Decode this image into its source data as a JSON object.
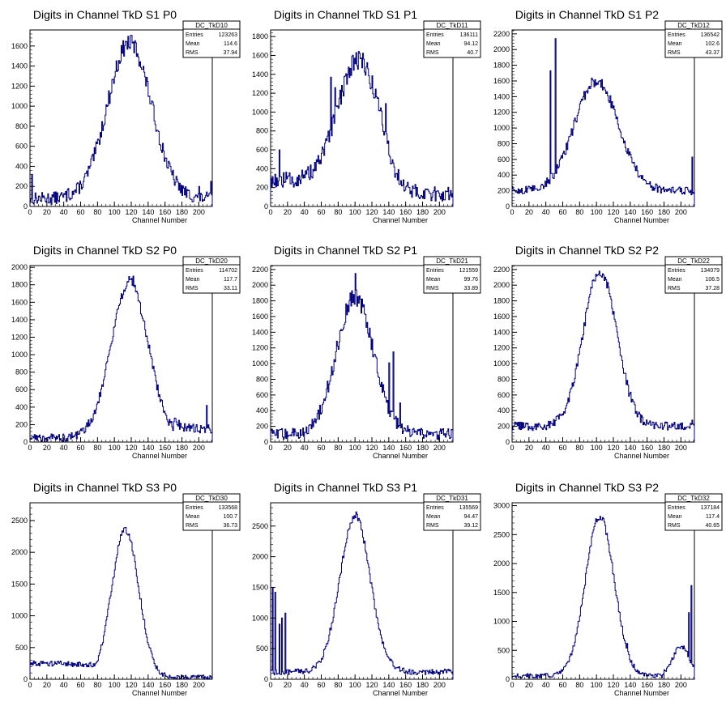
{
  "colors": {
    "line": "#000080",
    "axis": "#000000",
    "background": "#ffffff"
  },
  "stats_labels": {
    "entries": "Entries",
    "mean": "Mean",
    "rms": "RMS"
  },
  "chart_data": [
    {
      "type": "line",
      "title": "Digits in Channel TkD S1 P0",
      "xlabel": "Channel Number",
      "ylabel": "",
      "xlim": [
        0,
        216
      ],
      "ylim": [
        0,
        1760
      ],
      "yticks": [
        0,
        200,
        400,
        600,
        800,
        1000,
        1200,
        1400,
        1600
      ],
      "xticks": [
        0,
        20,
        40,
        60,
        80,
        100,
        120,
        140,
        160,
        180,
        200
      ],
      "stats": {
        "name": "DC_TkD10",
        "entries": "123263",
        "mean": "114.6",
        "rms": "37.94"
      },
      "shape": {
        "kind": "peak",
        "center": 118,
        "sigma": 26,
        "amp": 1550,
        "base": 80,
        "noise": 90
      },
      "spikes": [
        [
          2,
          320
        ],
        [
          45,
          180
        ],
        [
          200,
          200
        ],
        [
          214,
          250
        ]
      ]
    },
    {
      "type": "line",
      "title": "Digits in Channel TkD S1 P1",
      "xlabel": "Channel Number",
      "ylabel": "",
      "xlim": [
        0,
        216
      ],
      "ylim": [
        0,
        1870
      ],
      "yticks": [
        0,
        200,
        400,
        600,
        800,
        1000,
        1200,
        1400,
        1600,
        1800
      ],
      "xticks": [
        0,
        20,
        40,
        60,
        80,
        100,
        120,
        140,
        160,
        180,
        200
      ],
      "stats": {
        "name": "DC_TkD11",
        "entries": "136111",
        "mean": "94.12",
        "rms": "40.7"
      },
      "shape": {
        "kind": "peak",
        "center": 104,
        "sigma": 24,
        "amp": 1280,
        "base": 280,
        "noise": 110,
        "tailDrop": 150
      },
      "spikes": [
        [
          71,
          1370
        ],
        [
          76,
          1260
        ],
        [
          136,
          1090
        ],
        [
          10,
          600
        ]
      ]
    },
    {
      "type": "line",
      "title": "Digits in Channel TkD S1 P2",
      "xlabel": "Channel Number",
      "ylabel": "",
      "xlim": [
        0,
        216
      ],
      "ylim": [
        0,
        2250
      ],
      "yticks": [
        0,
        200,
        400,
        600,
        800,
        1000,
        1200,
        1400,
        1600,
        1800,
        2000,
        2200
      ],
      "xticks": [
        0,
        20,
        40,
        60,
        80,
        100,
        120,
        140,
        160,
        180,
        200
      ],
      "stats": {
        "name": "DC_TkD12",
        "entries": "136542",
        "mean": "102.6",
        "rms": "43.37"
      },
      "shape": {
        "kind": "peak",
        "center": 100,
        "sigma": 26,
        "amp": 1400,
        "base": 200,
        "noise": 70
      },
      "spikes": [
        [
          45,
          1730
        ],
        [
          51,
          2140
        ],
        [
          103,
          1600
        ],
        [
          213,
          630
        ]
      ]
    },
    {
      "type": "line",
      "title": "Digits in Channel TkD S2 P0",
      "xlabel": "Channel Number",
      "ylabel": "",
      "xlim": [
        0,
        216
      ],
      "ylim": [
        0,
        2020
      ],
      "yticks": [
        0,
        200,
        400,
        600,
        800,
        1000,
        1200,
        1400,
        1600,
        1800,
        2000
      ],
      "xticks": [
        0,
        20,
        40,
        60,
        80,
        100,
        120,
        140,
        160,
        180,
        200
      ],
      "stats": {
        "name": "DC_TkD20",
        "entries": "114702",
        "mean": "117.7",
        "rms": "33.11"
      },
      "shape": {
        "kind": "peak",
        "center": 118,
        "sigma": 22,
        "amp": 1780,
        "base": 50,
        "noise": 70,
        "tailUp": 200
      },
      "spikes": [
        [
          122,
          1900
        ],
        [
          125,
          1720
        ],
        [
          209,
          420
        ]
      ]
    },
    {
      "type": "line",
      "title": "Digits in Channel TkD S2 P1",
      "xlabel": "Channel Number",
      "ylabel": "",
      "xlim": [
        0,
        216
      ],
      "ylim": [
        0,
        2250
      ],
      "yticks": [
        0,
        200,
        400,
        600,
        800,
        1000,
        1200,
        1400,
        1600,
        1800,
        2000,
        2200
      ],
      "xticks": [
        0,
        20,
        40,
        60,
        80,
        100,
        120,
        140,
        160,
        180,
        200
      ],
      "stats": {
        "name": "DC_TkD21",
        "entries": "121559",
        "mean": "99.76",
        "rms": "33.89"
      },
      "shape": {
        "kind": "peak",
        "center": 100,
        "sigma": 22,
        "amp": 1750,
        "base": 100,
        "noise": 110
      },
      "spikes": [
        [
          100,
          2150
        ],
        [
          140,
          1010
        ],
        [
          145,
          1150
        ],
        [
          153,
          500
        ]
      ]
    },
    {
      "type": "line",
      "title": "Digits in Channel TkD S2 P2",
      "xlabel": "Channel Number",
      "ylabel": "",
      "xlim": [
        0,
        216
      ],
      "ylim": [
        0,
        2250
      ],
      "yticks": [
        0,
        200,
        400,
        600,
        800,
        1000,
        1200,
        1400,
        1600,
        1800,
        2000,
        2200
      ],
      "xticks": [
        0,
        20,
        40,
        60,
        80,
        100,
        120,
        140,
        160,
        180,
        200
      ],
      "stats": {
        "name": "DC_TkD22",
        "entries": "134079",
        "mean": "106.5",
        "rms": "37.28"
      },
      "shape": {
        "kind": "peak",
        "center": 104,
        "sigma": 20,
        "amp": 1980,
        "base": 200,
        "noise": 80
      },
      "spikes": [
        [
          108,
          2130
        ],
        [
          213,
          280
        ]
      ]
    },
    {
      "type": "line",
      "title": "Digits in Channel TkD S3 P0",
      "xlabel": "Channel Number",
      "ylabel": "",
      "xlim": [
        0,
        216
      ],
      "ylim": [
        0,
        2780
      ],
      "yticks": [
        0,
        500,
        1000,
        1500,
        2000,
        2500
      ],
      "xticks": [
        0,
        20,
        40,
        60,
        80,
        100,
        120,
        140,
        160,
        180,
        200
      ],
      "stats": {
        "name": "DC_TkD30",
        "entries": "133568",
        "mean": "100.7",
        "rms": "36.73"
      },
      "shape": {
        "kind": "peak",
        "center": 113,
        "sigma": 16,
        "amp": 2330,
        "base": 30,
        "noise": 60,
        "leftShelf": 260
      },
      "spikes": []
    },
    {
      "type": "line",
      "title": "Digits in Channel TkD S3 P1",
      "xlabel": "Channel Number",
      "ylabel": "",
      "xlim": [
        0,
        216
      ],
      "ylim": [
        0,
        2880
      ],
      "yticks": [
        0,
        500,
        1000,
        1500,
        2000,
        2500
      ],
      "xticks": [
        0,
        20,
        40,
        60,
        80,
        100,
        120,
        140,
        160,
        180,
        200
      ],
      "stats": {
        "name": "DC_TkD31",
        "entries": "135569",
        "mean": "94.47",
        "rms": "39.12"
      },
      "shape": {
        "kind": "peak",
        "center": 100,
        "sigma": 18,
        "amp": 2550,
        "base": 120,
        "noise": 70
      },
      "spikes": [
        [
          2,
          1500
        ],
        [
          5,
          1420
        ],
        [
          10,
          900
        ],
        [
          13,
          1000
        ],
        [
          17,
          1080
        ]
      ]
    },
    {
      "type": "line",
      "title": "Digits in Channel TkD S3 P2",
      "xlabel": "Channel Number",
      "ylabel": "",
      "xlim": [
        0,
        216
      ],
      "ylim": [
        0,
        3050
      ],
      "yticks": [
        0,
        500,
        1000,
        1500,
        2000,
        2500,
        3000
      ],
      "xticks": [
        0,
        20,
        40,
        60,
        80,
        100,
        120,
        140,
        160,
        180,
        200
      ],
      "stats": {
        "name": "DC_TkD32",
        "entries": "137184",
        "mean": "117.4",
        "rms": "40.65"
      },
      "shape": {
        "kind": "peak",
        "center": 104,
        "sigma": 17,
        "amp": 2750,
        "base": 60,
        "noise": 60,
        "rightBump": 500
      },
      "spikes": [
        [
          212,
          1620
        ],
        [
          209,
          1150
        ],
        [
          136,
          620
        ]
      ]
    }
  ]
}
